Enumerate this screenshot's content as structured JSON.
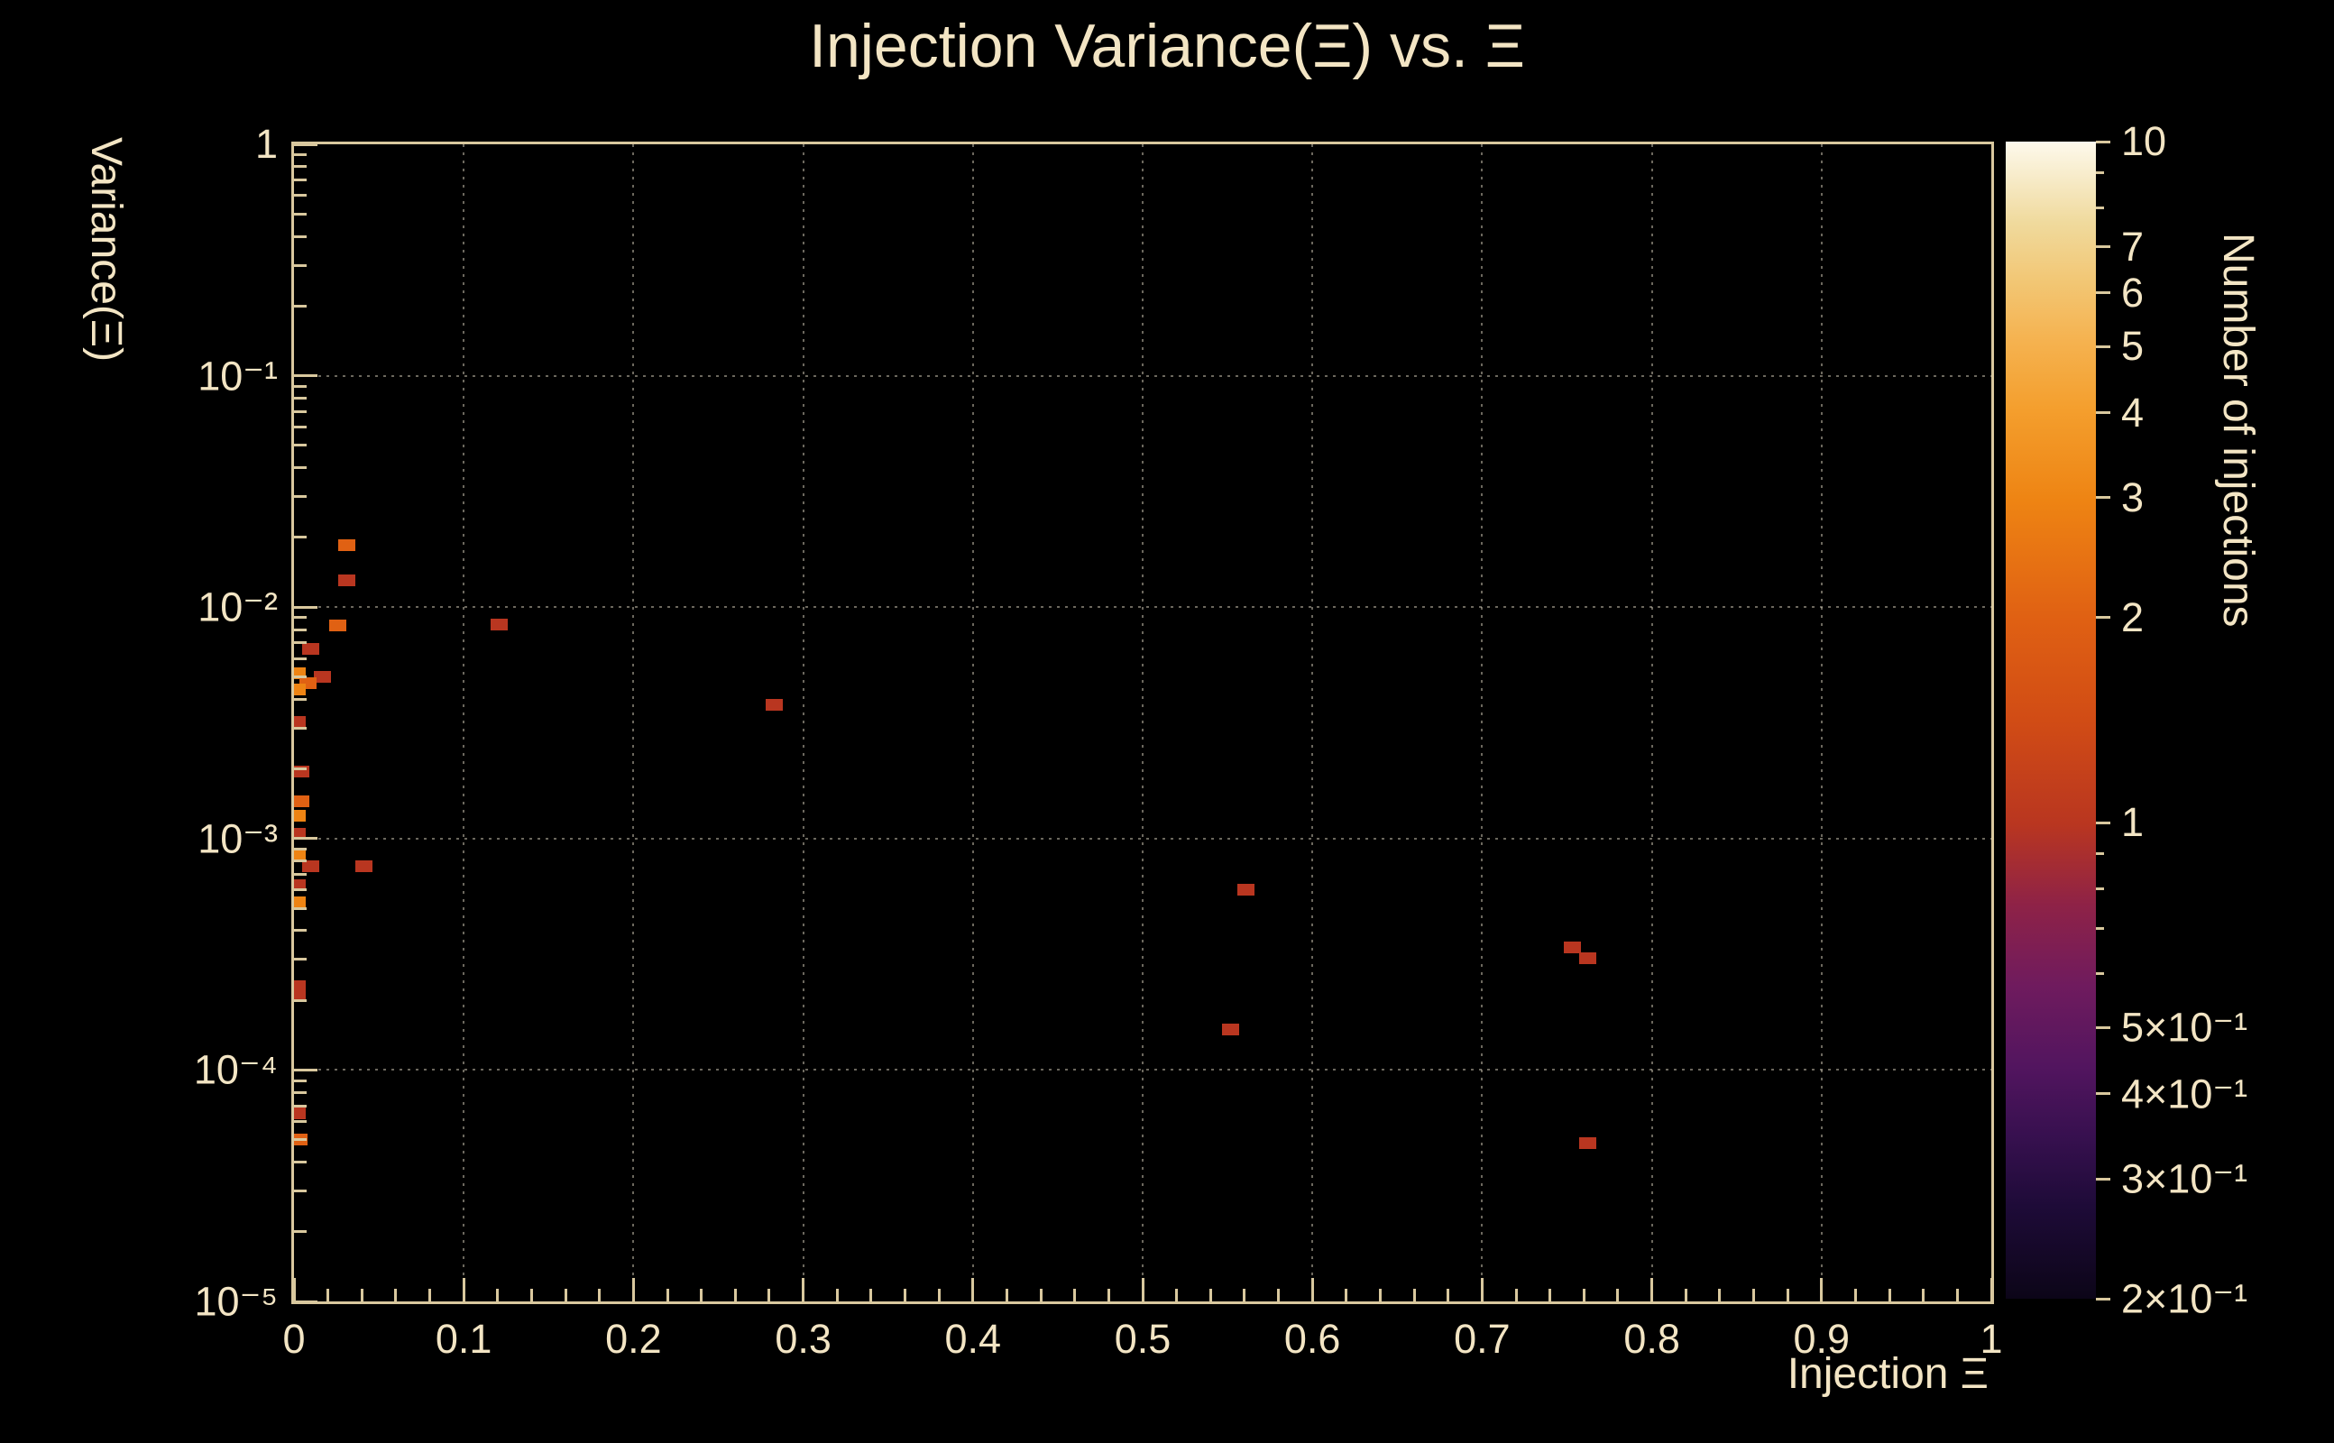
{
  "title": "Injection Variance(Ξ) vs. Ξ",
  "colors": {
    "background": "#000000",
    "text": "#f3e5c4",
    "axis_line": "#d9c89e",
    "grid_line": "#d8d0bc"
  },
  "axes": {
    "x": {
      "title": "Injection Ξ",
      "min": 0,
      "max": 1,
      "minor_step": 0.02,
      "ticks": [
        {
          "v": 0,
          "label": "0"
        },
        {
          "v": 0.1,
          "label": "0.1"
        },
        {
          "v": 0.2,
          "label": "0.2"
        },
        {
          "v": 0.3,
          "label": "0.3"
        },
        {
          "v": 0.4,
          "label": "0.4"
        },
        {
          "v": 0.5,
          "label": "0.5"
        },
        {
          "v": 0.6,
          "label": "0.6"
        },
        {
          "v": 0.7,
          "label": "0.7"
        },
        {
          "v": 0.8,
          "label": "0.8"
        },
        {
          "v": 0.9,
          "label": "0.9"
        },
        {
          "v": 1,
          "label": "1"
        }
      ]
    },
    "y": {
      "title": "Variance(Ξ)",
      "scale": "log",
      "min": 1e-05,
      "max": 1,
      "ticks": [
        {
          "v": 1,
          "label": "1"
        },
        {
          "v": 0.1,
          "label": "10⁻¹"
        },
        {
          "v": 0.01,
          "label": "10⁻²"
        },
        {
          "v": 0.001,
          "label": "10⁻³"
        },
        {
          "v": 0.0001,
          "label": "10⁻⁴"
        },
        {
          "v": 1e-05,
          "label": "10⁻⁵"
        }
      ]
    },
    "z": {
      "title": "Number of injections",
      "scale": "log",
      "min": 0.2,
      "max": 10,
      "ticks": [
        {
          "v": 10,
          "label": "10"
        },
        {
          "v": 7,
          "label": "7"
        },
        {
          "v": 6,
          "label": "6"
        },
        {
          "v": 5,
          "label": "5"
        },
        {
          "v": 4,
          "label": "4"
        },
        {
          "v": 3,
          "label": "3"
        },
        {
          "v": 2,
          "label": "2"
        },
        {
          "v": 1,
          "label": "1"
        },
        {
          "v": 0.5,
          "label": "5×10⁻¹"
        },
        {
          "v": 0.4,
          "label": "4×10⁻¹"
        },
        {
          "v": 0.3,
          "label": "3×10⁻¹"
        },
        {
          "v": 0.2,
          "label": "2×10⁻¹"
        }
      ],
      "minor_ticks": [
        0.6,
        0.7,
        0.8,
        0.9,
        8,
        9
      ]
    }
  },
  "chart_data": {
    "type": "heatmap",
    "title": "Injection Variance(Ξ) vs. Ξ",
    "xlabel": "Injection Ξ",
    "ylabel": "Variance(Ξ)",
    "zlabel": "Number of injections",
    "x_range": [
      0,
      1
    ],
    "y_range": [
      1e-05,
      1
    ],
    "y_scale": "log",
    "z_range": [
      0.2,
      10
    ],
    "z_scale": "log",
    "grid": true,
    "n_bins_x": 100,
    "n_bins_y": 100,
    "bins": [
      {
        "x": 0.031,
        "y": 0.0185,
        "count": 2
      },
      {
        "x": 0.031,
        "y": 0.0131,
        "count": 1
      },
      {
        "x": 0.026,
        "y": 0.0083,
        "count": 2
      },
      {
        "x": 0.121,
        "y": 0.0084,
        "count": 1
      },
      {
        "x": 0.283,
        "y": 0.0038,
        "count": 1
      },
      {
        "x": 0.01,
        "y": 0.0066,
        "count": 1
      },
      {
        "x": 0.017,
        "y": 0.005,
        "count": 1
      },
      {
        "x": 0.002,
        "y": 0.0052,
        "count": 3
      },
      {
        "x": 0.008,
        "y": 0.0047,
        "count": 2
      },
      {
        "x": 0.002,
        "y": 0.0044,
        "count": 3
      },
      {
        "x": 0.002,
        "y": 0.0032,
        "count": 1
      },
      {
        "x": 0.004,
        "y": 0.00195,
        "count": 1
      },
      {
        "x": 0.004,
        "y": 0.00145,
        "count": 2
      },
      {
        "x": 0.002,
        "y": 0.00125,
        "count": 3
      },
      {
        "x": 0.002,
        "y": 0.00105,
        "count": 1
      },
      {
        "x": 0.002,
        "y": 0.00084,
        "count": 3
      },
      {
        "x": 0.01,
        "y": 0.00076,
        "count": 1
      },
      {
        "x": 0.041,
        "y": 0.00076,
        "count": 1
      },
      {
        "x": 0.002,
        "y": 0.00063,
        "count": 1
      },
      {
        "x": 0.002,
        "y": 0.00053,
        "count": 3
      },
      {
        "x": 0.002,
        "y": 0.00023,
        "count": 1
      },
      {
        "x": 0.002,
        "y": 0.00021,
        "count": 1
      },
      {
        "x": 0.002,
        "y": 6.5e-05,
        "count": 1
      },
      {
        "x": 0.003,
        "y": 5e-05,
        "count": 2
      },
      {
        "x": 0.561,
        "y": 0.0006,
        "count": 1
      },
      {
        "x": 0.552,
        "y": 0.00015,
        "count": 1
      },
      {
        "x": 0.753,
        "y": 0.00034,
        "count": 1
      },
      {
        "x": 0.762,
        "y": 0.000305,
        "count": 1
      },
      {
        "x": 0.762,
        "y": 4.85e-05,
        "count": 1
      }
    ],
    "count_colors": {
      "1": "#b93620",
      "2": "#e06113",
      "3": "#ee8413",
      "4": "#f49f2e"
    },
    "colormap_stops": [
      {
        "f": 0.0,
        "c": "#0c0518"
      },
      {
        "f": 0.08,
        "c": "#1e0b38"
      },
      {
        "f": 0.14,
        "c": "#37104f"
      },
      {
        "f": 0.2,
        "c": "#52155f"
      },
      {
        "f": 0.27,
        "c": "#6f1b5e"
      },
      {
        "f": 0.34,
        "c": "#8e2247"
      },
      {
        "f": 0.41,
        "c": "#b93620"
      },
      {
        "f": 0.5,
        "c": "#d14c15"
      },
      {
        "f": 0.59,
        "c": "#e06113"
      },
      {
        "f": 0.69,
        "c": "#ee8413"
      },
      {
        "f": 0.77,
        "c": "#f49f2e"
      },
      {
        "f": 0.83,
        "c": "#f5b351"
      },
      {
        "f": 0.88,
        "c": "#f2c775"
      },
      {
        "f": 0.93,
        "c": "#f0da9d"
      },
      {
        "f": 1.0,
        "c": "#fdf9ec"
      }
    ]
  }
}
